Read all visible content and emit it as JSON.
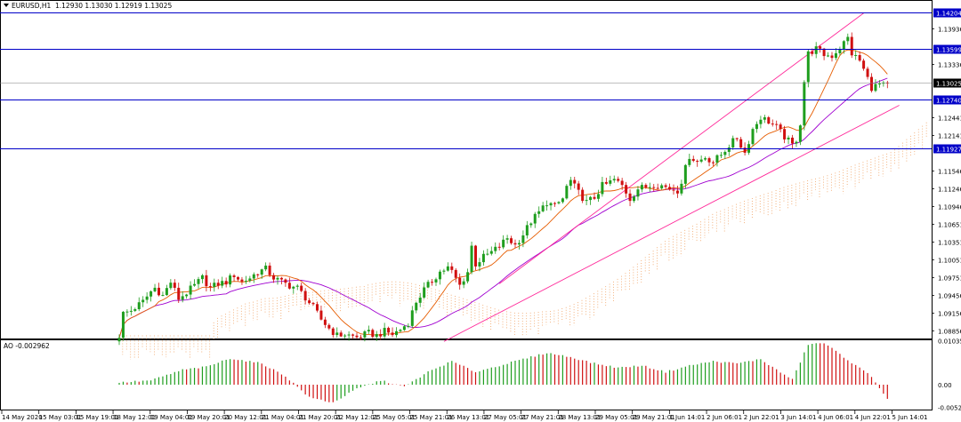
{
  "header": {
    "symbol": "EURUSD,H1",
    "ohlc": "1.12930 1.13030 1.12919 1.13025",
    "ao_label": "AO -0.002962"
  },
  "colors": {
    "bull": "#1e9e1e",
    "bear": "#d01010",
    "hline": "#0000c8",
    "channel": "#ff2a9a",
    "ma_fast": "#e65c00",
    "ma_slow": "#a000d0",
    "cloud": "#f0a060",
    "cloud_upper": "#c8b0e0",
    "current": "#808080"
  },
  "chart_data": [
    {
      "type": "candlestick",
      "title": "EURUSD,H1",
      "ylim": [
        1.0873,
        1.1442
      ],
      "price_ticks": [
        "1.13936",
        "1.13336",
        "1.12441",
        "1.12141",
        "1.11846",
        "1.11546",
        "1.11246",
        "1.10946",
        "1.10651",
        "1.10351",
        "1.10051",
        "1.09751",
        "1.09456",
        "1.09156",
        "1.08856"
      ],
      "x_ticks": [
        "14 May 2020",
        "15 May 03:01",
        "15 May 19:01",
        "18 May 12:01",
        "19 May 04:01",
        "19 May 20:01",
        "20 May 12:01",
        "21 May 04:01",
        "21 May 20:01",
        "22 May 12:01",
        "25 May 05:01",
        "25 May 21:01",
        "26 May 13:01",
        "27 May 05:01",
        "27 May 21:01",
        "28 May 13:01",
        "29 May 05:01",
        "29 May 21:01",
        "1 Jun 14:01",
        "2 Jun 06:01",
        "2 Jun 22:01",
        "3 Jun 14:01",
        "4 Jun 06:01",
        "4 Jun 22:01",
        "5 Jun 14:01"
      ],
      "horizontal_lines": [
        {
          "price": 1.14204,
          "label": "1.14204"
        },
        {
          "price": 1.13599,
          "label": "1.13599"
        },
        {
          "price": 1.1274,
          "label": "1.12740"
        },
        {
          "price": 1.11927,
          "label": "1.11927"
        }
      ],
      "current_price": {
        "price": 1.13025,
        "label": "1.13025"
      },
      "keypoints": [
        [
          0,
          1.0878
        ],
        [
          1,
          1.0915
        ],
        [
          3,
          1.092
        ],
        [
          6,
          1.0935
        ],
        [
          8,
          1.0952
        ],
        [
          9,
          1.0958
        ],
        [
          11,
          1.0945
        ],
        [
          13,
          1.0968
        ],
        [
          15,
          1.094
        ],
        [
          17,
          1.095
        ],
        [
          19,
          1.0962
        ],
        [
          21,
          1.0975
        ],
        [
          23,
          1.0958
        ],
        [
          25,
          1.0965
        ],
        [
          27,
          1.0968
        ],
        [
          29,
          1.098
        ],
        [
          31,
          1.0968
        ],
        [
          33,
          1.0975
        ],
        [
          35,
          1.0985
        ],
        [
          37,
          1.099
        ],
        [
          39,
          1.0975
        ],
        [
          41,
          1.0968
        ],
        [
          43,
          1.0962
        ],
        [
          45,
          1.0958
        ],
        [
          47,
          1.0942
        ],
        [
          49,
          1.0925
        ],
        [
          51,
          1.0905
        ],
        [
          53,
          1.089
        ],
        [
          55,
          1.0878
        ],
        [
          57,
          1.088
        ],
        [
          60,
          1.0875
        ],
        [
          63,
          1.0882
        ],
        [
          65,
          1.0878
        ],
        [
          67,
          1.0885
        ],
        [
          69,
          1.088
        ],
        [
          71,
          1.0888
        ],
        [
          73,
          1.09
        ],
        [
          75,
          1.0935
        ],
        [
          77,
          1.0955
        ],
        [
          79,
          1.097
        ],
        [
          81,
          1.0985
        ],
        [
          83,
          1.0992
        ],
        [
          84,
          1.0985
        ],
        [
          86,
          1.0962
        ],
        [
          88,
          1.0985
        ],
        [
          89,
          1.1028
        ],
        [
          90,
          1.0998
        ],
        [
          92,
          1.101
        ],
        [
          94,
          1.1018
        ],
        [
          96,
          1.1028
        ],
        [
          98,
          1.1042
        ],
        [
          100,
          1.103
        ],
        [
          102,
          1.1048
        ],
        [
          104,
          1.107
        ],
        [
          106,
          1.1085
        ],
        [
          108,
          1.1102
        ],
        [
          110,
          1.1095
        ],
        [
          112,
          1.1108
        ],
        [
          113,
          1.1128
        ],
        [
          114,
          1.1138
        ],
        [
          116,
          1.1118
        ],
        [
          118,
          1.1102
        ],
        [
          120,
          1.111
        ],
        [
          122,
          1.113
        ],
        [
          123,
          1.1132
        ],
        [
          125,
          1.114
        ],
        [
          127,
          1.113
        ],
        [
          129,
          1.1108
        ],
        [
          131,
          1.1125
        ],
        [
          133,
          1.1128
        ],
        [
          135,
          1.1132
        ],
        [
          137,
          1.113
        ],
        [
          139,
          1.1125
        ],
        [
          141,
          1.1122
        ],
        [
          142,
          1.1138
        ],
        [
          144,
          1.118
        ],
        [
          146,
          1.117
        ],
        [
          148,
          1.1178
        ],
        [
          150,
          1.117
        ],
        [
          152,
          1.1182
        ],
        [
          154,
          1.1198
        ],
        [
          156,
          1.121
        ],
        [
          158,
          1.1185
        ],
        [
          160,
          1.1225
        ],
        [
          162,
          1.1245
        ],
        [
          164,
          1.1238
        ],
        [
          166,
          1.1228
        ],
        [
          168,
          1.1212
        ],
        [
          170,
          1.1198
        ],
        [
          171,
          1.1208
        ],
        [
          172,
          1.1235
        ],
        [
          173,
          1.1305
        ],
        [
          174,
          1.1352
        ],
        [
          176,
          1.136
        ],
        [
          178,
          1.135
        ],
        [
          180,
          1.1348
        ],
        [
          182,
          1.1362
        ],
        [
          184,
          1.1378
        ],
        [
          185,
          1.1352
        ],
        [
          187,
          1.134
        ],
        [
          189,
          1.131
        ],
        [
          190,
          1.1295
        ],
        [
          192,
          1.13
        ],
        [
          193,
          1.1298
        ],
        [
          194,
          1.1302
        ]
      ],
      "ao_keypoints": [
        [
          0,
          0.0005
        ],
        [
          8,
          0.001
        ],
        [
          16,
          0.0035
        ],
        [
          22,
          0.0042
        ],
        [
          28,
          0.0062
        ],
        [
          36,
          0.005
        ],
        [
          42,
          0.002
        ],
        [
          48,
          -0.003
        ],
        [
          54,
          -0.0042
        ],
        [
          60,
          -0.001
        ],
        [
          66,
          0.001
        ],
        [
          72,
          -0.0005
        ],
        [
          78,
          0.003
        ],
        [
          84,
          0.0055
        ],
        [
          90,
          0.003
        ],
        [
          96,
          0.0045
        ],
        [
          102,
          0.006
        ],
        [
          108,
          0.0075
        ],
        [
          114,
          0.0065
        ],
        [
          120,
          0.005
        ],
        [
          126,
          0.004
        ],
        [
          132,
          0.0045
        ],
        [
          138,
          0.003
        ],
        [
          144,
          0.0045
        ],
        [
          150,
          0.0055
        ],
        [
          156,
          0.005
        ],
        [
          162,
          0.006
        ],
        [
          166,
          0.0035
        ],
        [
          170,
          0.0012
        ],
        [
          174,
          0.0095
        ],
        [
          178,
          0.0098
        ],
        [
          182,
          0.0072
        ],
        [
          186,
          0.0045
        ],
        [
          190,
          0.002
        ],
        [
          194,
          -0.0035
        ]
      ],
      "ao_ylim": [
        -0.00585,
        0.01045
      ],
      "ao_ticks": [
        "0.010356",
        "0.00",
        "-0.005288"
      ],
      "channel": {
        "upper": [
          [
            96,
            1.0965
          ],
          [
            188,
            1.142
          ]
        ],
        "lower": [
          [
            82,
            1.0868
          ],
          [
            197,
            1.1265
          ]
        ]
      }
    }
  ]
}
